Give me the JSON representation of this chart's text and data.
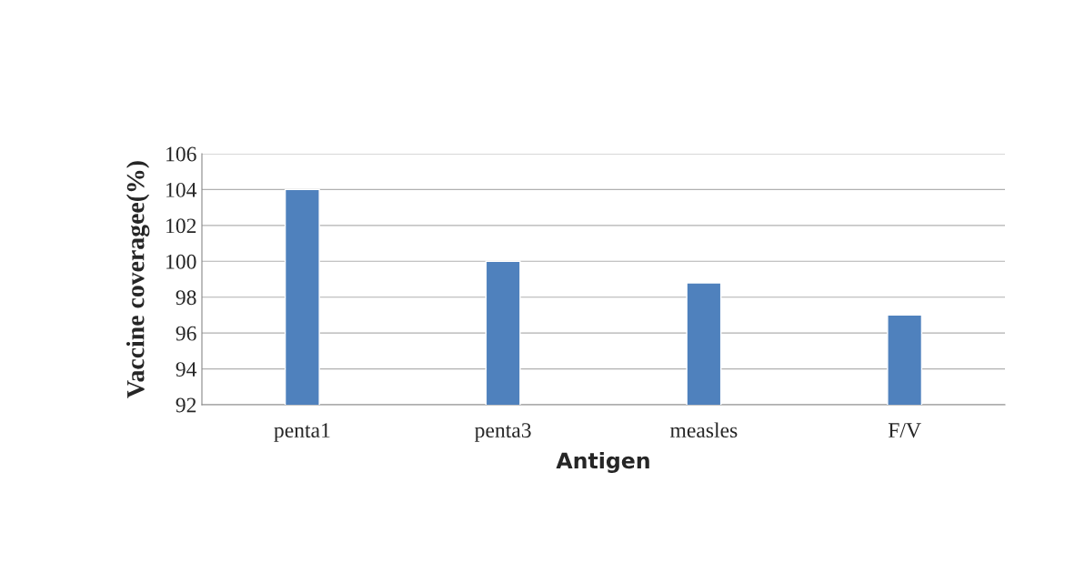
{
  "chart_data": {
    "type": "bar",
    "xlabel": "Antigen",
    "ylabel": "Vaccine coveragee(%)",
    "categories": [
      "penta1",
      "penta3",
      "measles",
      "F/V"
    ],
    "values": [
      104,
      100,
      98.8,
      97
    ],
    "color": "#4f81bd",
    "ylim": [
      92,
      106
    ],
    "yticks": [
      92,
      94,
      96,
      98,
      100,
      102,
      104,
      106
    ],
    "grid": "y"
  }
}
